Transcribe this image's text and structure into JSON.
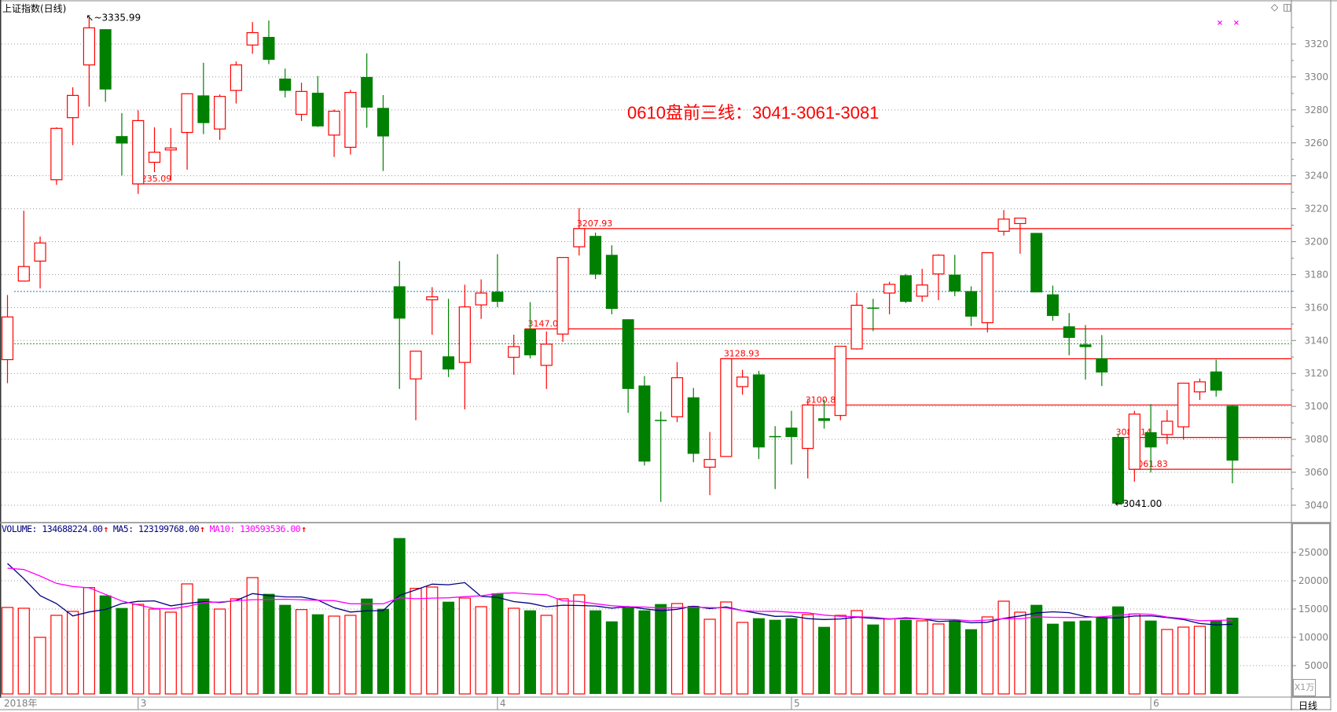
{
  "header": {
    "title": "上证指数(日线)",
    "period_label": "日线",
    "volume_unit": "X1万"
  },
  "annotation": "0610盘前三线：3041-3061-3081",
  "volume_header": {
    "volume_label": "VOLUME: 134688224.00",
    "ma5_label": "MA5: 123199768.00",
    "ma10_label": "MA10: 130593536.00",
    "arrow": "↑"
  },
  "colors": {
    "up": "#ff0000",
    "down": "#008000",
    "ma5": "#000080",
    "ma10": "#ff00ff",
    "axis_text": "#808080",
    "level_line": "#ff0000"
  },
  "icons": [
    "diamond-icon",
    "split-panel-icon"
  ],
  "chart_data": [
    {
      "type": "candlestick",
      "title": "上证指数(日线)",
      "y_axis": {
        "ticks": [
          3040,
          3060,
          3080,
          3100,
          3120,
          3140,
          3160,
          3180,
          3200,
          3220,
          3240,
          3260,
          3280,
          3300,
          3320
        ],
        "range": [
          3030,
          3336
        ],
        "grid": true,
        "position": "right"
      },
      "x_axis": {
        "labels": [
          {
            "text": "2018年",
            "index": 0
          },
          {
            "text": "3",
            "index": 8
          },
          {
            "text": "4",
            "index": 30
          },
          {
            "text": "5",
            "index": 48
          },
          {
            "text": "6",
            "index": 70
          }
        ]
      },
      "ohlc_fields": [
        "open",
        "high",
        "low",
        "close"
      ],
      "candles": [
        [
          3128.4,
          3167.6,
          3114.1,
          3154.3
        ],
        [
          3176.1,
          3218.8,
          3176.1,
          3184.9
        ],
        [
          3188.2,
          3203.1,
          3171.6,
          3199.2
        ],
        [
          3237.6,
          3269.4,
          3234.5,
          3268.8
        ],
        [
          3275.3,
          3293.7,
          3258.6,
          3288.8
        ],
        [
          3307.3,
          3335.99,
          3282.0,
          3329.8
        ],
        [
          3329.0,
          3329.0,
          3284.9,
          3292.4
        ],
        [
          3264.1,
          3278.0,
          3240.2,
          3259.6
        ],
        [
          3235.09,
          3279.8,
          3229.0,
          3273.5
        ],
        [
          3248.2,
          3269.4,
          3242.2,
          3254.3
        ],
        [
          3255.7,
          3269.0,
          3237.1,
          3256.9
        ],
        [
          3266.3,
          3290.0,
          3243.7,
          3289.8
        ],
        [
          3288.8,
          3308.6,
          3265.3,
          3272.0
        ],
        [
          3268.4,
          3289.4,
          3261.8,
          3288.2
        ],
        [
          3291.8,
          3309.4,
          3283.9,
          3307.3
        ],
        [
          3319.4,
          3333.3,
          3314.1,
          3326.9
        ],
        [
          3324.3,
          3334.3,
          3307.8,
          3310.4
        ],
        [
          3299.0,
          3305.1,
          3287.6,
          3291.6
        ],
        [
          3277.3,
          3296.5,
          3273.3,
          3291.2
        ],
        [
          3290.4,
          3300.6,
          3269.6,
          3270.0
        ],
        [
          3264.7,
          3280.2,
          3251.4,
          3279.2
        ],
        [
          3257.3,
          3292.2,
          3252.9,
          3290.6
        ],
        [
          3300.0,
          3314.3,
          3269.2,
          3281.4
        ],
        [
          3281.2,
          3289.0,
          3242.9,
          3263.9
        ],
        [
          3172.9,
          3188.2,
          3110.6,
          3153.3
        ],
        [
          3116.7,
          3133.5,
          3091.6,
          3133.5
        ],
        [
          3164.7,
          3172.4,
          3143.5,
          3166.5
        ],
        [
          3130.4,
          3165.3,
          3117.8,
          3122.4
        ],
        [
          3126.7,
          3173.9,
          3098.2,
          3160.4
        ],
        [
          3161.6,
          3177.1,
          3153.1,
          3168.8
        ],
        [
          3169.6,
          3192.4,
          3160.2,
          3163.5
        ],
        [
          3129.8,
          3143.5,
          3119.2,
          3136.3
        ],
        [
          3146.9,
          3163.3,
          3129.2,
          3131.0
        ],
        [
          3124.9,
          3145.5,
          3110.6,
          3137.8
        ],
        [
          3143.9,
          3190.6,
          3139.2,
          3190.4
        ],
        [
          3196.9,
          3220.4,
          3191.6,
          3207.93
        ],
        [
          3203.5,
          3205.5,
          3177.3,
          3180.0
        ],
        [
          3192.0,
          3197.8,
          3155.9,
          3159.2
        ],
        [
          3152.9,
          3152.9,
          3096.1,
          3110.6
        ],
        [
          3112.7,
          3118.4,
          3064.1,
          3066.5
        ],
        [
          3091.8,
          3096.9,
          3042.0,
          3091.6
        ],
        [
          3093.7,
          3126.9,
          3090.4,
          3117.4
        ],
        [
          3105.5,
          3111.2,
          3066.1,
          3071.2
        ],
        [
          3063.1,
          3084.5,
          3046.1,
          3067.8
        ],
        [
          3069.6,
          3128.93,
          3069.6,
          3128.93
        ],
        [
          3112.0,
          3122.2,
          3107.1,
          3117.8
        ],
        [
          3119.4,
          3121.6,
          3068.0,
          3075.1
        ],
        [
          3082.0,
          3088.0,
          3049.8,
          3081.8
        ],
        [
          3087.1,
          3097.3,
          3064.7,
          3081.4
        ],
        [
          3074.5,
          3104.0,
          3056.3,
          3100.86
        ],
        [
          3092.8,
          3104.0,
          3086.5,
          3091.2
        ],
        [
          3094.5,
          3136.5,
          3091.6,
          3136.5
        ],
        [
          3134.9,
          3169.0,
          3134.5,
          3161.4
        ],
        [
          3160.0,
          3165.3,
          3145.7,
          3159.6
        ],
        [
          3168.8,
          3175.7,
          3155.9,
          3174.1
        ],
        [
          3179.6,
          3180.4,
          3162.7,
          3163.5
        ],
        [
          3166.9,
          3183.5,
          3163.5,
          3173.7
        ],
        [
          3180.4,
          3192.4,
          3164.5,
          3191.8
        ],
        [
          3180.0,
          3192.0,
          3166.9,
          3169.8
        ],
        [
          3170.0,
          3172.9,
          3148.8,
          3154.5
        ],
        [
          3150.8,
          3193.3,
          3144.9,
          3193.3
        ],
        [
          3206.3,
          3219.2,
          3203.7,
          3213.7
        ],
        [
          3211.0,
          3214.3,
          3192.7,
          3214.3
        ],
        [
          3205.3,
          3205.3,
          3169.2,
          3169.2
        ],
        [
          3168.0,
          3173.3,
          3152.0,
          3154.9
        ],
        [
          3148.6,
          3156.7,
          3131.0,
          3141.6
        ],
        [
          3137.6,
          3149.4,
          3116.3,
          3136.0
        ],
        [
          3129.2,
          3143.3,
          3112.4,
          3120.6
        ],
        [
          3081.4,
          3083.5,
          3041.0,
          3041.0
        ],
        [
          3061.83,
          3097.3,
          3054.3,
          3095.3
        ],
        [
          3084.3,
          3101.4,
          3059.8,
          3075.1
        ],
        [
          3082.9,
          3097.8,
          3077.0,
          3091.0
        ],
        [
          3087.6,
          3114.1,
          3079.8,
          3114.1
        ],
        [
          3108.8,
          3116.9,
          3103.9,
          3114.9
        ],
        [
          3121.2,
          3128.4,
          3105.9,
          3109.6
        ],
        [
          3100.4,
          3100.6,
          3053.3,
          3067.1
        ]
      ],
      "high_marker": {
        "text": "3335.99",
        "index": 5,
        "value": 3335.99
      },
      "low_marker": {
        "text": "3041.00",
        "index": 68,
        "value": 3041.0
      },
      "level_lines": [
        {
          "label": "3235.09",
          "value": 3235.09,
          "start_index": 8
        },
        {
          "label": "3207.93",
          "value": 3207.93,
          "start_index": 35
        },
        {
          "label": "3147.05",
          "value": 3147.05,
          "start_index": 32
        },
        {
          "label": "3128.93",
          "value": 3128.93,
          "start_index": 44
        },
        {
          "label": "3100.86",
          "value": 3100.86,
          "start_index": 49
        },
        {
          "label": "3081.14",
          "value": 3081.14,
          "start_index": 68
        },
        {
          "label": "3061.83",
          "value": 3061.83,
          "start_index": 69
        }
      ],
      "reference_lines": [
        {
          "value": 3169.8,
          "color": "#1f77c8",
          "style": "dotted"
        },
        {
          "value": 3138.0,
          "color": "#2e9a2e",
          "style": "dotted"
        }
      ]
    },
    {
      "type": "bar",
      "y_axis": {
        "ticks": [
          5000,
          10000,
          15000,
          20000,
          25000
        ],
        "range": [
          0,
          30000
        ],
        "unit": "X1万",
        "grid": true,
        "position": "right"
      },
      "values": [
        15278,
        15140,
        10000,
        13889,
        14584,
        18796,
        17408,
        15186,
        15834,
        15000,
        14445,
        19446,
        16853,
        15000,
        16807,
        20557,
        17686,
        15742,
        14908,
        14075,
        13751,
        13889,
        16853,
        15046,
        27548,
        18658,
        18890,
        16298,
        16946,
        15418,
        17779,
        15140,
        14770,
        13889,
        16807,
        17501,
        14770,
        12825,
        15325,
        14770,
        15881,
        15974,
        15557,
        13196,
        16251,
        12640,
        13381,
        13103,
        13381,
        14029,
        11853,
        13889,
        14723,
        12270,
        13288,
        13103,
        12918,
        12362,
        13010,
        11436,
        13612,
        16390,
        14445,
        15742,
        12408,
        12825,
        12964,
        13520,
        15464,
        14122,
        12964,
        11390,
        11807,
        11945,
        12964,
        13469
      ],
      "series": [
        {
          "name": "MA5",
          "period": 5,
          "leading_values": [
            23057,
            20372,
            17363,
            15974
          ]
        },
        {
          "name": "MA10",
          "period": 10,
          "leading_values": [
            22224,
            21993,
            20835,
            19539,
            18983,
            18752,
            17594,
            16436,
            15742
          ]
        }
      ]
    }
  ]
}
